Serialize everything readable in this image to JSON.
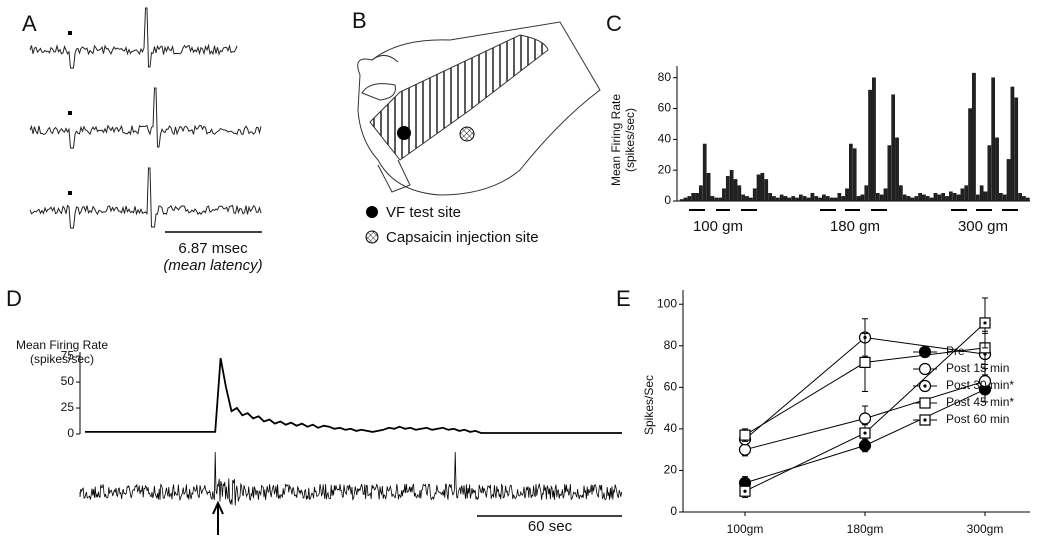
{
  "panels": [
    "A",
    "B",
    "C",
    "D",
    "E"
  ],
  "panel_a": {
    "scale_label": "6.87 msec",
    "scale_note": "(mean latency)"
  },
  "panel_b": {
    "legend": [
      "VF test site",
      "Capsaicin injection site"
    ]
  },
  "chart_data": [
    {
      "type": "bar",
      "ylabel": [
        "Mean Firing Rate",
        "(spikes/sec)"
      ],
      "color": "#222",
      "values": [
        1,
        2,
        3,
        5,
        5,
        10,
        37,
        18,
        3,
        2,
        2,
        8,
        16,
        20,
        14,
        10,
        4,
        3,
        2,
        8,
        17,
        18,
        14,
        5,
        3,
        2,
        4,
        3,
        2,
        3,
        2,
        4,
        3,
        2,
        5,
        3,
        2,
        4,
        3,
        2,
        2,
        5,
        3,
        8,
        37,
        34,
        3,
        4,
        10,
        72,
        80,
        5,
        4,
        8,
        36,
        69,
        41,
        10,
        4,
        3,
        2,
        3,
        5,
        4,
        3,
        2,
        5,
        4,
        5,
        3,
        6,
        5,
        4,
        8,
        10,
        60,
        83,
        4,
        10,
        6,
        36,
        80,
        41,
        5,
        4,
        27,
        74,
        67,
        5,
        3,
        2
      ],
      "group_labels": [
        "100 gm",
        "180 gm",
        "300 gm"
      ],
      "ylim": [
        0,
        85
      ],
      "yticks": [
        0,
        20,
        40,
        60,
        80
      ]
    },
    {
      "type": "line",
      "ylabel": [
        "Mean Firing Rate",
        "(spikes/sec)"
      ],
      "color": "#000",
      "values": [
        2,
        2,
        2,
        2,
        2,
        2,
        2,
        2,
        2,
        2,
        2,
        2,
        2,
        2,
        2,
        2,
        2,
        2,
        2,
        2,
        2,
        2,
        2,
        2,
        2,
        73,
        45,
        22,
        25,
        18,
        20,
        15,
        17,
        12,
        14,
        10,
        12,
        9,
        11,
        8,
        10,
        7,
        9,
        6,
        8,
        7,
        5,
        6,
        4,
        5,
        3,
        4,
        3,
        2,
        3,
        4,
        6,
        5,
        7,
        5,
        6,
        4,
        5,
        6,
        4,
        5,
        6,
        4,
        5,
        3,
        4,
        2,
        3,
        1,
        1,
        1,
        1,
        1,
        1,
        1,
        1,
        1,
        1,
        1,
        1,
        1,
        1,
        1,
        1,
        1,
        1,
        1,
        1,
        1,
        1,
        1,
        1,
        1,
        1,
        1
      ],
      "scale_label": "60 sec",
      "ylim": [
        0,
        78
      ],
      "yticks": [
        0,
        25,
        50,
        75
      ]
    },
    {
      "type": "errorline",
      "ylabel": "Spikes/Sec",
      "categories": [
        "100gm",
        "180gm",
        "300gm"
      ],
      "series": [
        {
          "name": "Pre",
          "marker": "filled-circle",
          "color": "#000",
          "values": [
            14,
            32,
            59
          ],
          "errors": [
            3,
            3,
            6
          ]
        },
        {
          "name": "Post 15 min",
          "marker": "circle",
          "color": "#000",
          "values": [
            30,
            45,
            63
          ],
          "errors": [
            3,
            6,
            6
          ]
        },
        {
          "name": "Post 30 min*",
          "marker": "dot-circle",
          "color": "#000",
          "values": [
            35,
            84,
            76
          ],
          "errors": [
            2,
            9,
            10
          ]
        },
        {
          "name": "Post 45 min*",
          "marker": "square",
          "color": "#000",
          "values": [
            37,
            72,
            79
          ],
          "errors": [
            3,
            14,
            8
          ]
        },
        {
          "name": "Post 60 min",
          "marker": "dot-square",
          "color": "#000",
          "values": [
            10,
            38,
            91
          ],
          "errors": [
            3,
            4,
            12
          ]
        }
      ],
      "ylim": [
        0,
        103
      ],
      "yticks": [
        0,
        20,
        40,
        60,
        80,
        100
      ]
    }
  ]
}
